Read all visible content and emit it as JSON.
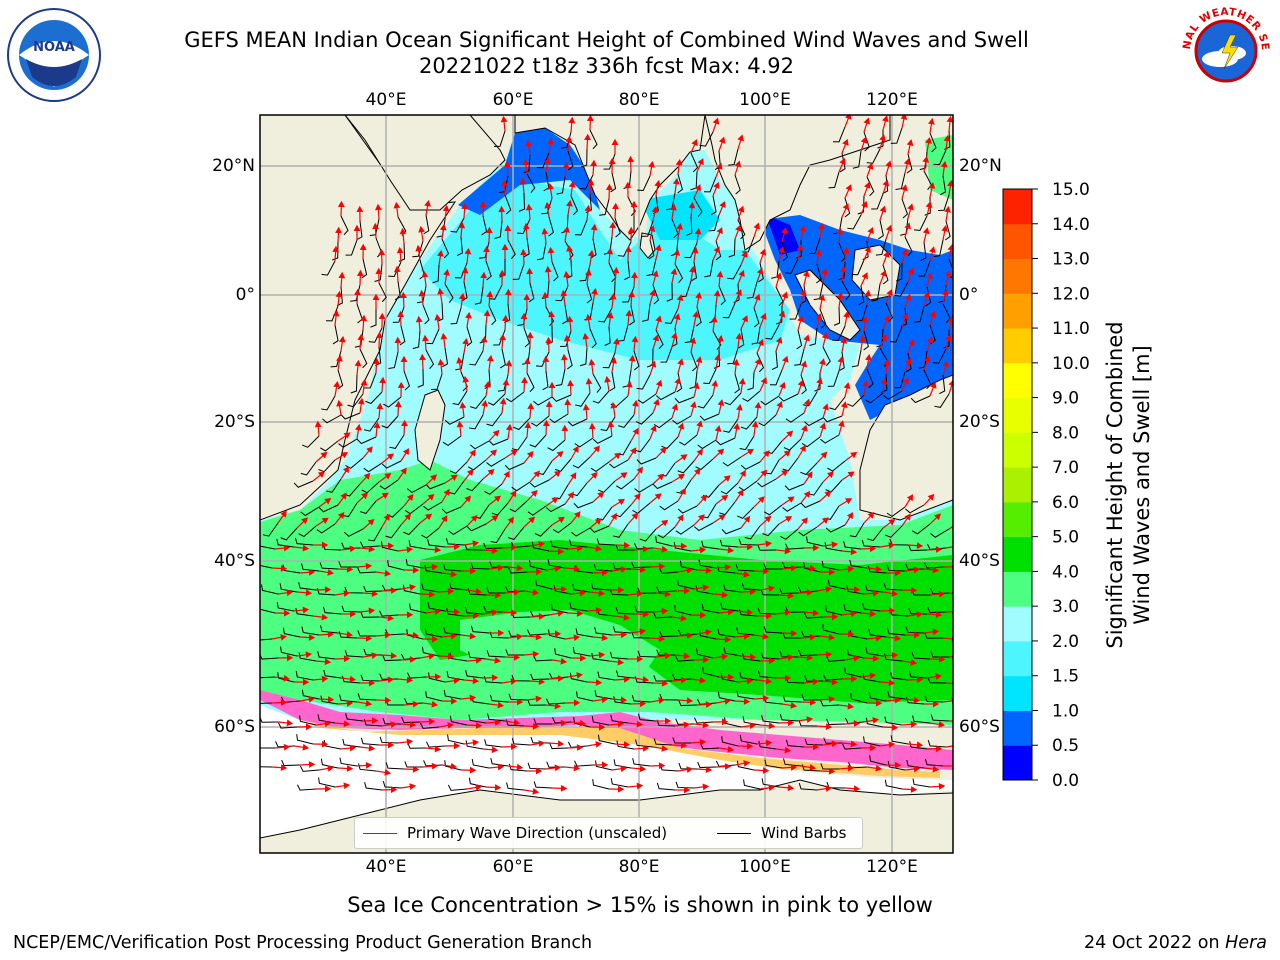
{
  "title": {
    "line1": "GEFS MEAN Indian Ocean Significant Height of Combined Wind Waves and Swell",
    "line2": "20221022 t18z 336h fcst   Max: 4.92"
  },
  "logos": {
    "left": "NOAA",
    "right": "NATIONAL WEATHER SERVICE"
  },
  "map": {
    "lon_ticks_top": [
      "40°E",
      "60°E",
      "80°E",
      "100°E",
      "120°E"
    ],
    "lon_ticks_bottom": [
      "40°E",
      "60°E",
      "80°E",
      "100°E",
      "120°E"
    ],
    "lat_ticks_left": [
      "20°N",
      "0°",
      "20°S",
      "40°S",
      "60°S"
    ],
    "lat_ticks_right": [
      "20°N",
      "0°",
      "20°S",
      "40°S",
      "60°S"
    ],
    "lon_range": [
      20,
      130
    ],
    "lat_range": [
      -73,
      27
    ],
    "colors": {
      "land": "#f0eedc",
      "ice_free_south": "#ffffff"
    }
  },
  "legend": {
    "wave_label": "Primary Wave Direction (unscaled)",
    "wind_label": "Wind Barbs",
    "wave_color": "#ff0000",
    "wind_color": "#000000"
  },
  "colorbar": {
    "title_line1": "Significant Height of Combined",
    "title_line2": "Wind Waves and Swell [m]",
    "tick_labels": [
      "0.0",
      "0.5",
      "1.0",
      "1.5",
      "2.0",
      "3.0",
      "4.0",
      "5.0",
      "6.0",
      "7.0",
      "8.0",
      "9.0",
      "10.0",
      "11.0",
      "12.0",
      "13.0",
      "14.0",
      "15.0"
    ],
    "colors": [
      "#0000ff",
      "#0066ff",
      "#00e5ff",
      "#4df5ff",
      "#a0fcff",
      "#4cff80",
      "#00e000",
      "#55ee00",
      "#aaf000",
      "#ccff00",
      "#e8ff00",
      "#ffff00",
      "#ffcc00",
      "#ffa000",
      "#ff7700",
      "#ff5500",
      "#ff2200"
    ]
  },
  "caption": "Sea Ice Concentration > 15% is shown in pink to yellow",
  "footer": {
    "left": "NCEP/EMC/Verification Post Processing Product Generation Branch",
    "right_date": "24 Oct 2022 on ",
    "right_host": "Hera"
  }
}
